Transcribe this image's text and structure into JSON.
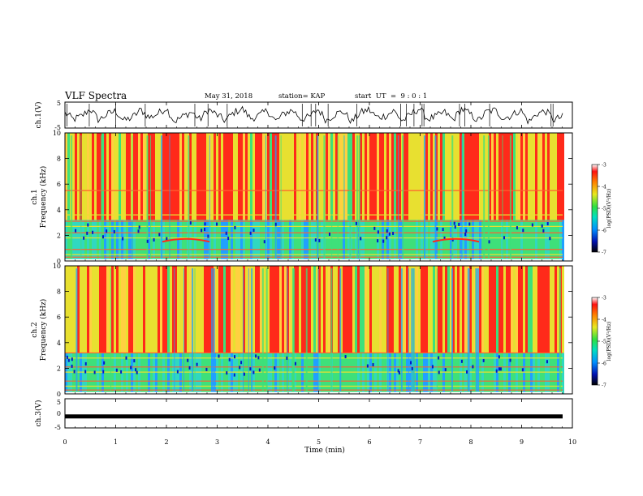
{
  "header": {
    "title": "VLF Spectra",
    "date": "May 31, 2018",
    "station": "station= KAP",
    "start": "start  UT  =  9 : 0 : 1"
  },
  "chart_data": [
    {
      "type": "line",
      "panel": "ch1-waveform",
      "ylabel": "ch.1(V)",
      "ylim": [
        -5,
        5
      ],
      "yticks": [
        "5",
        "-5"
      ],
      "xlim": [
        0,
        10
      ],
      "values": [
        0.9,
        -1.8,
        -0.4,
        2.6,
        -2.1,
        0.3,
        1.7,
        -2.4,
        -0.9,
        2.2,
        -1.1,
        0.6,
        2.9,
        -2.7,
        -0.5,
        1.3,
        -1.9,
        2.4,
        0.1,
        -2.3,
        1.0,
        2.7,
        -1.4,
        -0.2,
        1.9,
        -2.6,
        0.7,
        2.1,
        -1.6,
        -0.8,
        2.5,
        -2.2,
        0.4,
        1.5,
        -2.8,
        0.9,
        2.3,
        -1.0,
        -0.3,
        1.8,
        -2.5,
        0.2,
        2.8,
        -1.7,
        -0.6,
        1.2,
        -2.0,
        2.6,
        0.5,
        -2.4,
        1.4,
        2.0,
        -1.3,
        -0.1,
        2.2,
        -2.9,
        0.8,
        1.6,
        -1.9,
        -0.7
      ]
    },
    {
      "type": "heatmap",
      "panel": "ch1-spectrogram",
      "ylabel": "ch.1\nFrequency  (kHz)",
      "ylim": [
        0,
        10
      ],
      "yticks": [
        "0",
        "2",
        "4",
        "6",
        "8",
        "10"
      ],
      "xlim": [
        0,
        10
      ],
      "colorbar": {
        "label": "log(PSD)(V²/Hz)",
        "range": [
          -7,
          -3
        ],
        "ticks": [
          "-3",
          "-4",
          "-5",
          "-6",
          "-7"
        ]
      }
    },
    {
      "type": "heatmap",
      "panel": "ch2-spectrogram",
      "ylabel": "ch.2\nFrequency  (kHz)",
      "ylim": [
        0,
        10
      ],
      "yticks": [
        "0",
        "2",
        "4",
        "6",
        "8",
        "10"
      ],
      "xlim": [
        0,
        10
      ],
      "colorbar": {
        "label": "log(PSD)(V²/Hz)",
        "range": [
          -7,
          -3
        ],
        "ticks": [
          "-3",
          "-4",
          "-5",
          "-6",
          "-7"
        ]
      }
    },
    {
      "type": "line",
      "panel": "ch3-waveform",
      "ylabel": "ch.3(V)",
      "ylim": [
        -5,
        5
      ],
      "yticks": [
        "5",
        "0",
        "-5"
      ],
      "xlim": [
        0,
        10
      ],
      "constant_value": -1.2
    }
  ],
  "x_axis": {
    "label": "Time  (min)",
    "ticks": [
      "0",
      "1",
      "2",
      "3",
      "4",
      "5",
      "6",
      "7",
      "8",
      "9",
      "10"
    ]
  },
  "colors": {
    "high": "#ff2a1a",
    "mid": "#e8e030",
    "low": "#3ee07a",
    "lowest": "#0018c8"
  }
}
